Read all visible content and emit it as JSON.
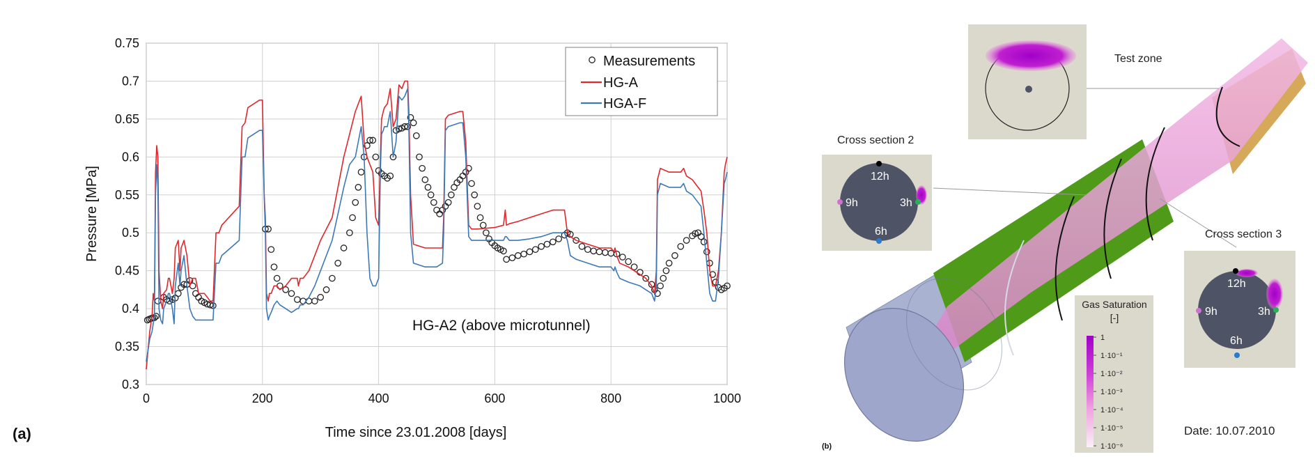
{
  "figure": {
    "panel_a_label": "(a)",
    "panel_b_label": "(b)"
  },
  "chart_data": {
    "type": "line",
    "title": "",
    "annotation": "HG-A2 (above microtunnel)",
    "xlabel": "Time since 23.01.2008  [days]",
    "ylabel": "Pressure [MPa]",
    "xlim": [
      0,
      1000
    ],
    "ylim": [
      0.3,
      0.75
    ],
    "xticks": [
      0,
      200,
      400,
      600,
      800,
      1000
    ],
    "yticks": [
      0.3,
      0.35,
      0.4,
      0.45,
      0.5,
      0.55,
      0.6,
      0.65,
      0.7,
      0.75
    ],
    "ytick_labels": [
      "0.3",
      "0.35",
      "0.4",
      "0.45",
      "0.5",
      "0.55",
      "0.6",
      "0.65",
      "0.7",
      "0.75"
    ],
    "grid": true,
    "legend_position": "top-right",
    "series": [
      {
        "name": "Measurements",
        "style": "markers",
        "color": "#222222",
        "x": [
          2,
          5,
          8,
          11,
          14,
          17,
          20,
          30,
          35,
          40,
          45,
          50,
          55,
          60,
          65,
          70,
          75,
          80,
          85,
          90,
          95,
          100,
          105,
          110,
          115,
          205,
          210,
          215,
          220,
          225,
          230,
          240,
          250,
          260,
          270,
          280,
          290,
          300,
          310,
          320,
          330,
          340,
          350,
          355,
          360,
          365,
          370,
          375,
          380,
          385,
          390,
          395,
          400,
          405,
          410,
          415,
          420,
          425,
          430,
          435,
          440,
          445,
          450,
          455,
          460,
          465,
          470,
          475,
          480,
          485,
          490,
          495,
          500,
          505,
          510,
          515,
          520,
          525,
          530,
          535,
          540,
          545,
          550,
          555,
          560,
          565,
          570,
          575,
          580,
          585,
          590,
          595,
          600,
          605,
          610,
          615,
          620,
          630,
          640,
          650,
          660,
          670,
          680,
          690,
          700,
          710,
          720,
          725,
          730,
          740,
          750,
          760,
          770,
          780,
          790,
          800,
          810,
          820,
          830,
          840,
          850,
          860,
          870,
          875,
          880,
          885,
          890,
          895,
          900,
          910,
          920,
          930,
          940,
          945,
          950,
          955,
          960,
          965,
          970,
          975,
          980,
          985,
          990,
          995,
          1000
        ],
        "values": [
          0.385,
          0.386,
          0.387,
          0.388,
          0.388,
          0.39,
          0.41,
          0.415,
          0.412,
          0.41,
          0.412,
          0.414,
          0.42,
          0.428,
          0.432,
          0.432,
          0.437,
          0.43,
          0.42,
          0.415,
          0.41,
          0.408,
          0.406,
          0.405,
          0.404,
          0.505,
          0.505,
          0.478,
          0.455,
          0.44,
          0.43,
          0.425,
          0.42,
          0.412,
          0.41,
          0.41,
          0.41,
          0.415,
          0.425,
          0.44,
          0.46,
          0.48,
          0.5,
          0.52,
          0.54,
          0.56,
          0.58,
          0.6,
          0.615,
          0.622,
          0.622,
          0.6,
          0.582,
          0.578,
          0.575,
          0.572,
          0.575,
          0.6,
          0.635,
          0.637,
          0.638,
          0.64,
          0.64,
          0.652,
          0.645,
          0.628,
          0.6,
          0.585,
          0.57,
          0.56,
          0.55,
          0.54,
          0.53,
          0.525,
          0.53,
          0.535,
          0.54,
          0.55,
          0.56,
          0.566,
          0.57,
          0.575,
          0.58,
          0.585,
          0.565,
          0.55,
          0.535,
          0.52,
          0.51,
          0.5,
          0.492,
          0.487,
          0.483,
          0.48,
          0.478,
          0.476,
          0.465,
          0.467,
          0.47,
          0.472,
          0.475,
          0.478,
          0.482,
          0.485,
          0.488,
          0.492,
          0.497,
          0.5,
          0.498,
          0.49,
          0.482,
          0.478,
          0.476,
          0.475,
          0.474,
          0.473,
          0.472,
          0.468,
          0.462,
          0.455,
          0.448,
          0.44,
          0.432,
          0.425,
          0.42,
          0.43,
          0.44,
          0.45,
          0.46,
          0.47,
          0.482,
          0.49,
          0.496,
          0.499,
          0.5,
          0.495,
          0.488,
          0.475,
          0.46,
          0.445,
          0.435,
          0.428,
          0.425,
          0.427,
          0.43
        ]
      },
      {
        "name": "HG-A",
        "style": "line",
        "color": "#e0262b",
        "x": [
          0,
          3,
          6,
          10,
          12,
          14,
          16,
          18,
          20,
          22,
          25,
          28,
          30,
          35,
          38,
          40,
          45,
          48,
          50,
          55,
          58,
          60,
          65,
          70,
          75,
          80,
          85,
          90,
          95,
          100,
          110,
          115,
          120,
          125,
          130,
          160,
          165,
          170,
          175,
          195,
          200,
          203,
          205,
          207,
          210,
          212,
          215,
          220,
          225,
          230,
          240,
          250,
          260,
          262,
          265,
          270,
          280,
          290,
          300,
          320,
          340,
          350,
          360,
          370,
          375,
          380,
          385,
          390,
          395,
          400,
          403,
          405,
          408,
          410,
          415,
          420,
          425,
          430,
          435,
          440,
          445,
          450,
          452,
          455,
          460,
          480,
          500,
          510,
          512,
          515,
          520,
          540,
          545,
          550,
          555,
          560,
          565,
          570,
          600,
          615,
          618,
          620,
          625,
          640,
          660,
          680,
          700,
          720,
          725,
          730,
          740,
          760,
          780,
          800,
          805,
          807,
          810,
          815,
          830,
          850,
          860,
          870,
          875,
          878,
          880,
          885,
          900,
          920,
          925,
          930,
          940,
          945,
          950,
          955,
          960,
          965,
          970,
          975,
          980,
          985,
          990,
          993,
          995,
          997,
          1000
        ],
        "values": [
          0.32,
          0.345,
          0.37,
          0.39,
          0.42,
          0.41,
          0.58,
          0.615,
          0.6,
          0.45,
          0.41,
          0.4,
          0.42,
          0.425,
          0.44,
          0.44,
          0.42,
          0.44,
          0.48,
          0.49,
          0.45,
          0.48,
          0.49,
          0.47,
          0.43,
          0.44,
          0.44,
          0.42,
          0.42,
          0.42,
          0.41,
          0.41,
          0.5,
          0.5,
          0.51,
          0.535,
          0.64,
          0.645,
          0.665,
          0.675,
          0.675,
          0.55,
          0.52,
          0.42,
          0.41,
          0.42,
          0.42,
          0.43,
          0.43,
          0.425,
          0.43,
          0.44,
          0.44,
          0.43,
          0.44,
          0.44,
          0.45,
          0.47,
          0.49,
          0.52,
          0.6,
          0.63,
          0.66,
          0.68,
          0.62,
          0.6,
          0.59,
          0.58,
          0.52,
          0.51,
          0.6,
          0.65,
          0.66,
          0.665,
          0.67,
          0.69,
          0.64,
          0.65,
          0.695,
          0.69,
          0.7,
          0.7,
          0.66,
          0.55,
          0.485,
          0.48,
          0.48,
          0.48,
          0.52,
          0.65,
          0.655,
          0.66,
          0.66,
          0.62,
          0.51,
          0.505,
          0.505,
          0.505,
          0.507,
          0.51,
          0.53,
          0.51,
          0.512,
          0.515,
          0.52,
          0.525,
          0.53,
          0.53,
          0.5,
          0.495,
          0.49,
          0.485,
          0.48,
          0.48,
          0.475,
          0.48,
          0.47,
          0.46,
          0.455,
          0.445,
          0.44,
          0.43,
          0.42,
          0.45,
          0.57,
          0.585,
          0.58,
          0.58,
          0.585,
          0.575,
          0.57,
          0.565,
          0.56,
          0.555,
          0.53,
          0.5,
          0.45,
          0.43,
          0.43,
          0.45,
          0.5,
          0.55,
          0.58,
          0.59,
          0.6
        ]
      },
      {
        "name": "HGA-F",
        "style": "line",
        "color": "#3d78b6",
        "x": [
          0,
          3,
          6,
          10,
          12,
          14,
          16,
          18,
          20,
          22,
          25,
          28,
          30,
          35,
          38,
          40,
          45,
          48,
          50,
          55,
          58,
          60,
          65,
          70,
          75,
          80,
          85,
          90,
          95,
          100,
          110,
          115,
          120,
          125,
          130,
          160,
          165,
          170,
          175,
          195,
          200,
          203,
          205,
          207,
          210,
          212,
          215,
          220,
          225,
          230,
          240,
          250,
          260,
          262,
          265,
          270,
          280,
          290,
          300,
          320,
          340,
          350,
          360,
          370,
          375,
          380,
          385,
          390,
          395,
          400,
          403,
          405,
          408,
          410,
          415,
          420,
          425,
          430,
          435,
          440,
          445,
          450,
          452,
          455,
          460,
          480,
          500,
          510,
          512,
          515,
          520,
          540,
          545,
          550,
          555,
          560,
          565,
          570,
          600,
          615,
          618,
          620,
          625,
          640,
          660,
          680,
          700,
          720,
          725,
          730,
          740,
          760,
          780,
          800,
          805,
          807,
          810,
          815,
          830,
          850,
          860,
          870,
          875,
          878,
          880,
          885,
          900,
          920,
          925,
          930,
          940,
          945,
          950,
          955,
          960,
          965,
          970,
          975,
          980,
          985,
          990,
          993,
          995,
          997,
          1000
        ],
        "values": [
          0.33,
          0.345,
          0.36,
          0.37,
          0.38,
          0.39,
          0.55,
          0.59,
          0.56,
          0.4,
          0.385,
          0.38,
          0.4,
          0.41,
          0.42,
          0.42,
          0.4,
          0.38,
          0.43,
          0.46,
          0.43,
          0.45,
          0.47,
          0.43,
          0.4,
          0.39,
          0.385,
          0.385,
          0.385,
          0.385,
          0.385,
          0.385,
          0.46,
          0.46,
          0.47,
          0.49,
          0.6,
          0.6,
          0.625,
          0.635,
          0.635,
          0.55,
          0.5,
          0.4,
          0.385,
          0.39,
          0.395,
          0.405,
          0.41,
          0.405,
          0.4,
          0.395,
          0.4,
          0.4,
          0.405,
          0.405,
          0.415,
          0.43,
          0.45,
          0.49,
          0.56,
          0.59,
          0.6,
          0.64,
          0.6,
          0.5,
          0.44,
          0.43,
          0.43,
          0.44,
          0.58,
          0.63,
          0.635,
          0.64,
          0.64,
          0.66,
          0.6,
          0.62,
          0.68,
          0.675,
          0.68,
          0.69,
          0.64,
          0.5,
          0.46,
          0.455,
          0.455,
          0.46,
          0.5,
          0.635,
          0.64,
          0.645,
          0.645,
          0.6,
          0.495,
          0.49,
          0.49,
          0.49,
          0.49,
          0.49,
          0.495,
          0.495,
          0.49,
          0.49,
          0.492,
          0.495,
          0.5,
          0.5,
          0.49,
          0.47,
          0.465,
          0.46,
          0.455,
          0.455,
          0.45,
          0.455,
          0.448,
          0.44,
          0.435,
          0.43,
          0.425,
          0.42,
          0.41,
          0.43,
          0.55,
          0.565,
          0.56,
          0.56,
          0.565,
          0.555,
          0.55,
          0.545,
          0.54,
          0.535,
          0.5,
          0.46,
          0.42,
          0.41,
          0.41,
          0.44,
          0.5,
          0.54,
          0.565,
          0.57,
          0.58
        ]
      }
    ]
  },
  "scene": {
    "test_zone_label": "Test zone",
    "cross_section_2_label": "Cross section 2",
    "cross_section_3_label": "Cross section 3",
    "clock_labels": {
      "h12": "12h",
      "h3": "3h",
      "h6": "6h",
      "h9": "9h"
    },
    "colorbar": {
      "title_line1": "Gas Saturation",
      "title_line2": "[-]",
      "ticks": [
        "1",
        "1·10⁻¹",
        "1·10⁻²",
        "1·10⁻³",
        "1·10⁻⁴",
        "1·10⁻⁵",
        "1·10⁻⁶"
      ]
    },
    "date_label": "Date: 10.07.2010",
    "colors": {
      "sandy_background": "#dbd8cc",
      "section_disk": "#4f5366",
      "gas_high": "#a000c8",
      "gas_low": "#ee9ad8",
      "backfill_green": "#4f9a18",
      "shotcrete_blue": "#aab2d2",
      "bentonite_orange": "#d6a85a"
    }
  }
}
